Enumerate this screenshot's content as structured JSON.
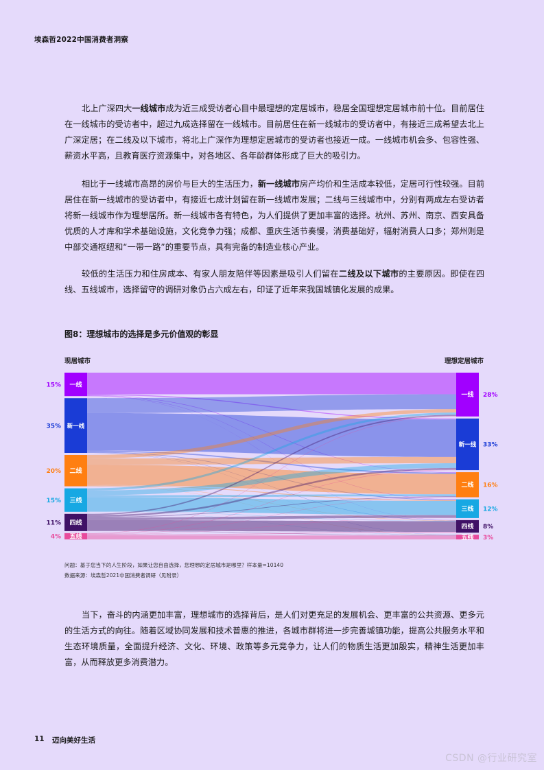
{
  "header": {
    "title": "埃森哲2022中国消费者洞察"
  },
  "paragraphs": {
    "p1": {
      "t1": "北上广深四大",
      "b1": "一线城市",
      "t2": "成为近三成受访者心目中最理想的定居城市，稳居全国理想定居城市前十位。目前居住在一线城市的受访者中，超过九成选择留在一线城市。目前居住在新一线城市的受访者中，有接近三成希望去北上广深定居；在二线及以下城市，将北上广深作为理想定居城市的受访者也接近一成。一线城市机会多、包容性强、薪资水平高，且教育医疗资源集中，对各地区、各年龄群体形成了巨大的吸引力。"
    },
    "p2": {
      "t1": "相比于一线城市高昂的房价与巨大的生活压力，",
      "b1": "新一线城市",
      "t2": "房产均价和生活成本较低，定居可行性较强。目前居住在新一线城市的受访者中，有接近七成计划留在新一线城市发展；二线与三线城市中，分别有两成左右受访者将新一线城市作为理想居所。新一线城市各有特色，为人们提供了更加丰富的选择。杭州、苏州、南京、西安具备优质的人才库和学术基础设施，文化竞争力强；成都、重庆生活节奏慢，消费基础好，辐射消费人口多；郑州则是中部交通枢纽和“一带一路”的重要节点，具有完备的制造业核心产业。"
    },
    "p3": {
      "t1": "较低的生活压力和住房成本、有家人朋友陪伴等因素是吸引人们留在",
      "b1": "二线及以下城市",
      "t2": "的主要原因。即使在四线、五线城市，选择留守的调研对象仍占六成左右，印证了近年来我国城镇化发展的成果。"
    },
    "p4": {
      "t1": "当下，奋斗的内涵更加丰富，理想城市的选择背后，是人们对更充足的发展机会、更丰富的公共资源、更多元的生活方式的向往。随着区域协同发展和技术普惠的推进，各城市群将进一步完善城镇功能，提高公共服务水平和生态环境质量，全面提升经济、文化、环境、政策等多元竞争力，让人们的物质生活更加殷实，精神生活更加丰富，从而释放更多消费潜力。"
    }
  },
  "figure": {
    "title": "图8：理想城市的选择是多元价值观的彰显",
    "left_header": "现居城市",
    "right_header": "理想定居城市",
    "question": "问题：基于您当下的人生阶段，如果让您自由选择，您理想的定居城市是哪里？样本量=10140",
    "source": "数据来源：埃森哲2021中国消费者调研（见附录）"
  },
  "chart_data": {
    "type": "sankey",
    "left": [
      {
        "name": "一线",
        "value": 15,
        "label": "15%",
        "color": "#A100FF"
      },
      {
        "name": "新一线",
        "value": 35,
        "label": "35%",
        "color": "#1A3CD6"
      },
      {
        "name": "二线",
        "value": 20,
        "label": "20%",
        "color": "#FF7F11"
      },
      {
        "name": "三线",
        "value": 15,
        "label": "15%",
        "color": "#17A8E3"
      },
      {
        "name": "四线",
        "value": 11,
        "label": "11%",
        "color": "#3F1166"
      },
      {
        "name": "五线",
        "value": 4,
        "label": "4%",
        "color": "#E84B9C"
      }
    ],
    "right": [
      {
        "name": "一线",
        "value": 28,
        "label": "28%",
        "color": "#A100FF"
      },
      {
        "name": "新一线",
        "value": 33,
        "label": "33%",
        "color": "#1A3CD6"
      },
      {
        "name": "二线",
        "value": 16,
        "label": "16%",
        "color": "#FF7F11"
      },
      {
        "name": "三线",
        "value": 12,
        "label": "12%",
        "color": "#17A8E3"
      },
      {
        "name": "四线",
        "value": 8,
        "label": "8%",
        "color": "#3F1166"
      },
      {
        "name": "五线",
        "value": 3,
        "label": "3%",
        "color": "#E84B9C"
      }
    ],
    "flows": [
      [
        13.8,
        0.6,
        0.3,
        0.2,
        0.1,
        0.0
      ],
      [
        9.5,
        24.0,
        0.8,
        0.4,
        0.2,
        0.1
      ],
      [
        2.2,
        4.0,
        13.0,
        0.5,
        0.2,
        0.1
      ],
      [
        1.4,
        3.0,
        1.3,
        9.0,
        0.2,
        0.1
      ],
      [
        0.8,
        1.1,
        0.4,
        1.7,
        6.8,
        0.2
      ],
      [
        0.3,
        0.3,
        0.2,
        0.2,
        0.5,
        2.5
      ]
    ]
  },
  "footer": {
    "page": "11",
    "title": "迈向美好生活"
  },
  "watermark": "CSDN @行业研究室"
}
